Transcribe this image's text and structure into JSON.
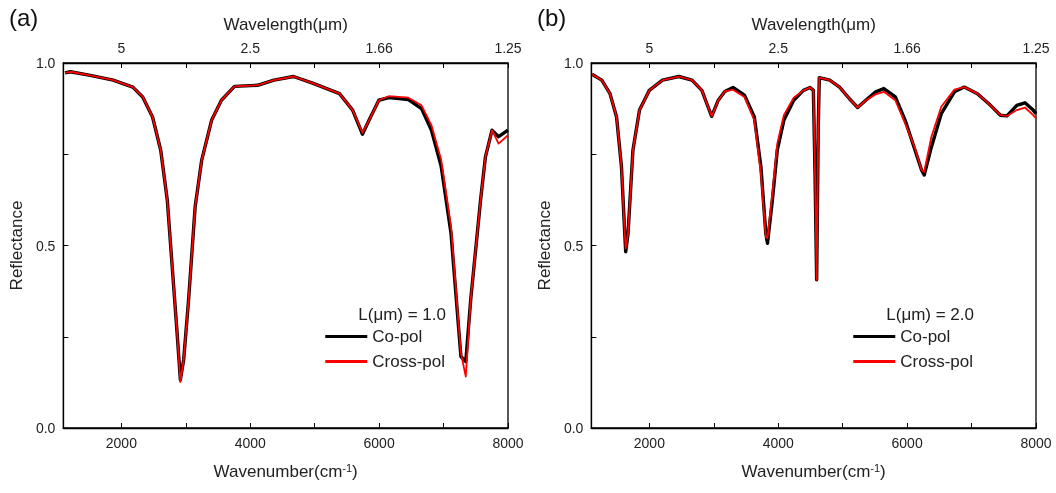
{
  "chart_data": [
    {
      "type": "line",
      "title": "(a)",
      "xlabel": "Wavenumber(cm$^{-1}$)",
      "x2label": "Wavelength(μm)",
      "ylabel": "Reflectance",
      "legend_title": "L(μm) = 1.0",
      "legend": "bottom right",
      "marker": "none",
      "xlim": [
        1100,
        8000
      ],
      "xticks": [
        {
          "value": 2000,
          "label": "2000"
        },
        {
          "value": 3000,
          "label": null
        },
        {
          "value": 4000,
          "label": "4000"
        },
        {
          "value": 5000,
          "label": null
        },
        {
          "value": 6000,
          "label": "6000"
        },
        {
          "value": 7000,
          "label": null
        },
        {
          "value": 8000,
          "label": "8000"
        }
      ],
      "annotations": [
        "5",
        "2.5",
        "1.66",
        "1.25"
      ],
      "ylim": [
        0,
        1
      ],
      "yticks": [
        {
          "value": 0,
          "label": "0.0"
        },
        {
          "value": 0.25,
          "label": null
        },
        {
          "value": 0.5,
          "label": "0.5"
        },
        {
          "value": 0.75,
          "label": null
        },
        {
          "value": 1,
          "label": "1.0"
        }
      ],
      "series": [
        {
          "name": "Co-pol",
          "color": "#000000",
          "x": [
            1125,
            1210,
            1517,
            1873,
            2178,
            2331,
            2484,
            2611,
            2713,
            2789,
            2865,
            2916,
            2967,
            3043,
            3145,
            3247,
            3400,
            3553,
            3756,
            4112,
            4367,
            4672,
            4978,
            5385,
            5589,
            5741,
            5843,
            5996,
            6149,
            6454,
            6658,
            6811,
            6964,
            7116,
            7269,
            7345,
            7421,
            7574,
            7650,
            7752,
            7854,
            8000
          ],
          "values": [
            0.973,
            0.976,
            0.966,
            0.953,
            0.934,
            0.907,
            0.852,
            0.761,
            0.624,
            0.442,
            0.26,
            0.132,
            0.187,
            0.351,
            0.606,
            0.734,
            0.843,
            0.898,
            0.936,
            0.939,
            0.953,
            0.963,
            0.944,
            0.916,
            0.871,
            0.805,
            0.843,
            0.898,
            0.905,
            0.9,
            0.875,
            0.816,
            0.716,
            0.533,
            0.196,
            0.182,
            0.351,
            0.624,
            0.743,
            0.816,
            0.798,
            0.816
          ]
        },
        {
          "name": "Cross-pol",
          "color": "#ff0000",
          "x": [
            1125,
            1210,
            1517,
            1873,
            2178,
            2331,
            2484,
            2611,
            2713,
            2789,
            2865,
            2916,
            2967,
            3043,
            3145,
            3247,
            3400,
            3553,
            3756,
            4112,
            4367,
            4672,
            4978,
            5385,
            5589,
            5741,
            5843,
            5996,
            6149,
            6454,
            6658,
            6811,
            6964,
            7116,
            7269,
            7345,
            7421,
            7574,
            7650,
            7752,
            7854,
            8000
          ],
          "values": [
            0.973,
            0.976,
            0.966,
            0.953,
            0.934,
            0.907,
            0.852,
            0.761,
            0.624,
            0.442,
            0.26,
            0.126,
            0.187,
            0.351,
            0.606,
            0.734,
            0.843,
            0.898,
            0.936,
            0.939,
            0.953,
            0.963,
            0.944,
            0.916,
            0.871,
            0.809,
            0.843,
            0.898,
            0.909,
            0.905,
            0.884,
            0.83,
            0.734,
            0.552,
            0.205,
            0.141,
            0.351,
            0.624,
            0.743,
            0.816,
            0.779,
            0.802
          ]
        }
      ]
    },
    {
      "type": "line",
      "title": "(b)",
      "xlabel": "Wavenumber(cm$^{-1}$)",
      "x2label": "Wavelength(μm)",
      "ylabel": "Reflectance",
      "legend_title": "L(μm) = 2.0",
      "legend": "bottom right",
      "marker": "none",
      "xlim": [
        1100,
        8000
      ],
      "xticks": [
        {
          "value": 2000,
          "label": "2000"
        },
        {
          "value": 3000,
          "label": null
        },
        {
          "value": 4000,
          "label": "4000"
        },
        {
          "value": 5000,
          "label": null
        },
        {
          "value": 6000,
          "label": "6000"
        },
        {
          "value": 7000,
          "label": null
        },
        {
          "value": 8000,
          "label": "8000"
        }
      ],
      "annotations": [
        "5",
        "2.5",
        "1.66",
        "1.25"
      ],
      "ylim": [
        0,
        1
      ],
      "yticks": [
        {
          "value": 0,
          "label": "0.0"
        },
        {
          "value": 0.25,
          "label": null
        },
        {
          "value": 0.5,
          "label": "0.5"
        },
        {
          "value": 0.75,
          "label": null
        },
        {
          "value": 1,
          "label": "1.0"
        }
      ],
      "series": [
        {
          "name": "Co-pol",
          "color": "#000000",
          "x": [
            1110,
            1262,
            1389,
            1491,
            1567,
            1618,
            1633,
            1669,
            1745,
            1847,
            2000,
            2204,
            2458,
            2662,
            2815,
            2891,
            2967,
            3069,
            3171,
            3298,
            3476,
            3629,
            3731,
            3807,
            3833,
            3909,
            3985,
            4087,
            4240,
            4392,
            4494,
            4545,
            4571,
            4596,
            4621,
            4637,
            4799,
            4952,
            5105,
            5232,
            5359,
            5512,
            5639,
            5817,
            5970,
            6123,
            6225,
            6265,
            6377,
            6530,
            6734,
            6887,
            7091,
            7294,
            7447,
            7549,
            7702,
            7829,
            7956,
            8000
          ],
          "values": [
            0.969,
            0.953,
            0.916,
            0.852,
            0.716,
            0.533,
            0.483,
            0.533,
            0.761,
            0.871,
            0.925,
            0.953,
            0.963,
            0.953,
            0.925,
            0.889,
            0.854,
            0.898,
            0.922,
            0.933,
            0.912,
            0.852,
            0.716,
            0.533,
            0.506,
            0.624,
            0.761,
            0.843,
            0.898,
            0.925,
            0.933,
            0.925,
            0.697,
            0.406,
            0.825,
            0.96,
            0.953,
            0.934,
            0.902,
            0.878,
            0.898,
            0.921,
            0.93,
            0.907,
            0.843,
            0.761,
            0.706,
            0.693,
            0.77,
            0.861,
            0.921,
            0.934,
            0.916,
            0.884,
            0.857,
            0.855,
            0.884,
            0.891,
            0.871,
            0.861
          ]
        },
        {
          "name": "Cross-pol",
          "color": "#ff0000",
          "x": [
            1110,
            1262,
            1389,
            1491,
            1567,
            1618,
            1633,
            1669,
            1745,
            1847,
            2000,
            2204,
            2458,
            2662,
            2815,
            2891,
            2967,
            3069,
            3171,
            3298,
            3476,
            3629,
            3731,
            3807,
            3833,
            3909,
            3985,
            4087,
            4240,
            4392,
            4494,
            4545,
            4571,
            4596,
            4621,
            4637,
            4799,
            4952,
            5105,
            5232,
            5359,
            5512,
            5639,
            5817,
            5970,
            6123,
            6225,
            6265,
            6377,
            6530,
            6734,
            6887,
            7091,
            7294,
            7447,
            7549,
            7702,
            7829,
            7956,
            8000
          ],
          "values": [
            0.969,
            0.953,
            0.916,
            0.852,
            0.716,
            0.533,
            0.492,
            0.533,
            0.761,
            0.871,
            0.925,
            0.953,
            0.963,
            0.953,
            0.925,
            0.889,
            0.854,
            0.898,
            0.922,
            0.927,
            0.907,
            0.843,
            0.697,
            0.524,
            0.52,
            0.643,
            0.779,
            0.857,
            0.905,
            0.925,
            0.933,
            0.925,
            0.697,
            0.406,
            0.825,
            0.96,
            0.953,
            0.934,
            0.902,
            0.878,
            0.898,
            0.914,
            0.921,
            0.898,
            0.834,
            0.766,
            0.706,
            0.702,
            0.798,
            0.88,
            0.927,
            0.934,
            0.916,
            0.884,
            0.857,
            0.855,
            0.871,
            0.878,
            0.857,
            0.848
          ]
        }
      ]
    }
  ]
}
